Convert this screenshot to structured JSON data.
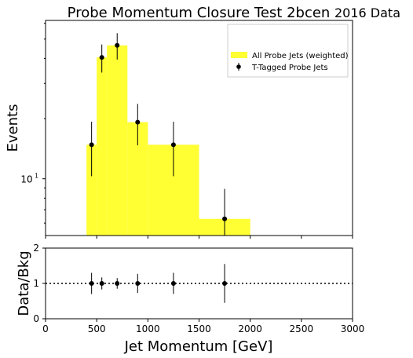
{
  "chart_data": [
    {
      "type": "bar",
      "title": "Probe Momentum Closure Test 2bcen",
      "annotation": "2016 Data",
      "xlabel": "",
      "ylabel": "Events",
      "yscale": "log",
      "xlim": [
        0,
        3000
      ],
      "ylim": [
        5.2,
        62
      ],
      "yticks": [
        {
          "value": 10,
          "base": "10",
          "exp": "1"
        }
      ],
      "grid": false,
      "legend_placement": "top-right",
      "histogram": {
        "name": "All Probe Jets (weighted)",
        "color": "#ffff33",
        "bins": [
          {
            "x0": 400,
            "x1": 500,
            "value": 14.8
          },
          {
            "x0": 500,
            "x1": 600,
            "value": 40.5
          },
          {
            "x0": 600,
            "x1": 800,
            "value": 46.5
          },
          {
            "x0": 800,
            "x1": 1000,
            "value": 19.2
          },
          {
            "x0": 1000,
            "x1": 1500,
            "value": 14.8
          },
          {
            "x0": 1500,
            "x1": 2000,
            "value": 6.3
          }
        ]
      },
      "points": {
        "name": "T-Tagged Probe Jets",
        "color": "#000000",
        "x": [
          450,
          550,
          700,
          900,
          1250,
          1750
        ],
        "y": [
          14.8,
          40.5,
          46.5,
          19.2,
          14.8,
          6.3
        ],
        "err_low": [
          4.5,
          6.5,
          7.0,
          4.5,
          4.5,
          2.8
        ],
        "err_high": [
          4.5,
          6.5,
          7.0,
          4.5,
          4.5,
          2.6
        ]
      }
    },
    {
      "type": "scatter",
      "title": "",
      "xlabel": "Jet Momentum [GeV]",
      "ylabel": "Data/Bkg",
      "xlim": [
        0,
        3000
      ],
      "ylim": [
        0,
        2
      ],
      "xticks": [
        "0",
        "500",
        "1000",
        "1500",
        "2000",
        "2500",
        "3000"
      ],
      "yticks": [
        "0",
        "1",
        "2"
      ],
      "reference_line": 1,
      "points": {
        "x": [
          450,
          550,
          700,
          900,
          1250,
          1750
        ],
        "y": [
          1,
          1,
          1,
          1,
          1,
          1
        ],
        "err": [
          0.3,
          0.17,
          0.15,
          0.27,
          0.3,
          0.55
        ]
      }
    }
  ]
}
